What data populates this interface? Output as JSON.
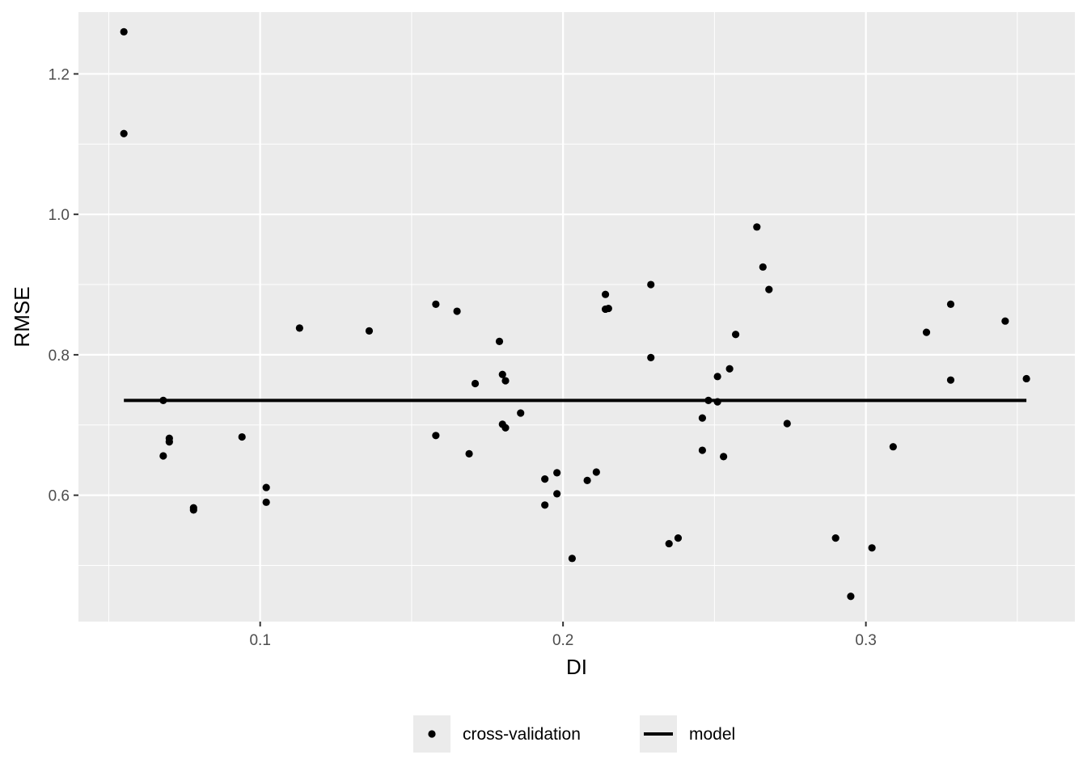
{
  "chart_data": {
    "type": "scatter",
    "xlabel": "DI",
    "ylabel": "RMSE",
    "xlim": [
      0.04,
      0.369
    ],
    "ylim": [
      0.42,
      1.288
    ],
    "x_ticks": [
      0.1,
      0.2,
      0.3
    ],
    "x_tick_labels": [
      "0.1",
      "0.2",
      "0.3"
    ],
    "y_ticks": [
      0.6,
      0.8,
      1.0,
      1.2
    ],
    "y_tick_labels": [
      "0.6",
      "0.8",
      "1.0",
      "1.2"
    ],
    "grid": true,
    "legend_position": "bottom",
    "colors": {
      "panel": "#ebebeb",
      "grid": "#ffffff",
      "points": "#000000",
      "line": "#000000"
    },
    "series": [
      {
        "name": "cross-validation",
        "kind": "points",
        "points": [
          [
            0.055,
            1.26
          ],
          [
            0.055,
            1.115
          ],
          [
            0.068,
            0.735
          ],
          [
            0.068,
            0.656
          ],
          [
            0.07,
            0.681
          ],
          [
            0.07,
            0.676
          ],
          [
            0.078,
            0.582
          ],
          [
            0.078,
            0.579
          ],
          [
            0.094,
            0.683
          ],
          [
            0.102,
            0.611
          ],
          [
            0.102,
            0.59
          ],
          [
            0.113,
            0.838
          ],
          [
            0.136,
            0.834
          ],
          [
            0.158,
            0.872
          ],
          [
            0.158,
            0.685
          ],
          [
            0.165,
            0.862
          ],
          [
            0.169,
            0.659
          ],
          [
            0.171,
            0.759
          ],
          [
            0.179,
            0.819
          ],
          [
            0.18,
            0.772
          ],
          [
            0.18,
            0.701
          ],
          [
            0.181,
            0.763
          ],
          [
            0.181,
            0.696
          ],
          [
            0.186,
            0.717
          ],
          [
            0.194,
            0.623
          ],
          [
            0.194,
            0.586
          ],
          [
            0.198,
            0.632
          ],
          [
            0.198,
            0.602
          ],
          [
            0.203,
            0.51
          ],
          [
            0.208,
            0.621
          ],
          [
            0.211,
            0.633
          ],
          [
            0.214,
            0.886
          ],
          [
            0.214,
            0.865
          ],
          [
            0.215,
            0.866
          ],
          [
            0.229,
            0.9
          ],
          [
            0.229,
            0.796
          ],
          [
            0.235,
            0.531
          ],
          [
            0.238,
            0.539
          ],
          [
            0.246,
            0.71
          ],
          [
            0.246,
            0.664
          ],
          [
            0.248,
            0.735
          ],
          [
            0.251,
            0.769
          ],
          [
            0.251,
            0.733
          ],
          [
            0.253,
            0.655
          ],
          [
            0.255,
            0.78
          ],
          [
            0.257,
            0.829
          ],
          [
            0.264,
            0.982
          ],
          [
            0.266,
            0.925
          ],
          [
            0.268,
            0.893
          ],
          [
            0.274,
            0.702
          ],
          [
            0.29,
            0.539
          ],
          [
            0.295,
            0.456
          ],
          [
            0.302,
            0.525
          ],
          [
            0.309,
            0.669
          ],
          [
            0.32,
            0.832
          ],
          [
            0.328,
            0.872
          ],
          [
            0.328,
            0.764
          ],
          [
            0.346,
            0.848
          ],
          [
            0.353,
            0.766
          ]
        ]
      },
      {
        "name": "model",
        "kind": "line",
        "points": [
          [
            0.055,
            0.735
          ],
          [
            0.353,
            0.735
          ]
        ]
      }
    ]
  }
}
